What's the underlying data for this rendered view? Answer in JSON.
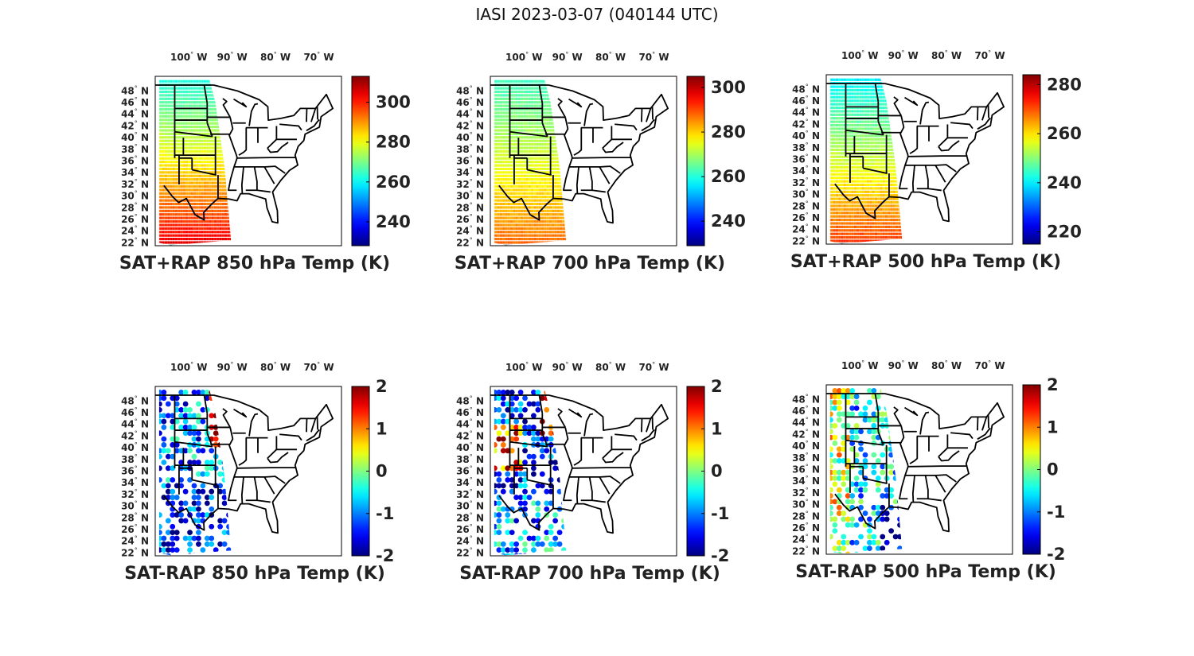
{
  "figure_title": "IASI 2023-03-07 (040144 UTC)",
  "chart_data": [
    {
      "type": "heatmap",
      "title": "SAT+RAP 850 hPa Temp (K)",
      "lon_labels": [
        "100",
        "90",
        "80",
        "70"
      ],
      "lon_suffix": "W",
      "lat_labels": [
        "48",
        "46",
        "44",
        "42",
        "40",
        "38",
        "36",
        "34",
        "32",
        "30",
        "28",
        "26",
        "24",
        "22"
      ],
      "lat_suffix": "N",
      "colorbar": {
        "ticks": [
          "300",
          "280",
          "260",
          "240"
        ],
        "tick_values": [
          300,
          280,
          260,
          240
        ],
        "range": [
          228,
          313
        ]
      },
      "field": "temperature",
      "swath_lon_east": [
        -95,
        -89
      ],
      "colormap": "jet"
    },
    {
      "type": "heatmap",
      "title": "SAT+RAP 700 hPa Temp (K)",
      "lon_labels": [
        "100",
        "90",
        "80",
        "70"
      ],
      "lon_suffix": "W",
      "lat_labels": [
        "48",
        "46",
        "44",
        "42",
        "40",
        "38",
        "36",
        "34",
        "32",
        "30",
        "28",
        "26",
        "24",
        "22"
      ],
      "lat_suffix": "N",
      "colorbar": {
        "ticks": [
          "300",
          "280",
          "260",
          "240"
        ],
        "tick_values": [
          300,
          280,
          260,
          240
        ],
        "range": [
          229,
          305
        ]
      },
      "field": "temperature",
      "swath_lon_east": [
        -95,
        -89
      ],
      "colormap": "jet"
    },
    {
      "type": "heatmap",
      "title": "SAT+RAP 500 hPa Temp (K)",
      "lon_labels": [
        "100",
        "90",
        "80",
        "70"
      ],
      "lon_suffix": "W",
      "lat_labels": [
        "48",
        "46",
        "44",
        "42",
        "40",
        "38",
        "36",
        "34",
        "32",
        "30",
        "28",
        "26",
        "24",
        "22"
      ],
      "lat_suffix": "N",
      "colorbar": {
        "ticks": [
          "280",
          "260",
          "240",
          "220"
        ],
        "tick_values": [
          280,
          260,
          240,
          220
        ],
        "range": [
          215,
          284
        ]
      },
      "field": "temperature",
      "swath_lon_east": [
        -95,
        -89
      ],
      "colormap": "jet"
    },
    {
      "type": "heatmap",
      "title": "SAT-RAP 850 hPa Temp (K)",
      "lon_labels": [
        "100",
        "90",
        "80",
        "70"
      ],
      "lon_suffix": "W",
      "lat_labels": [
        "48",
        "46",
        "44",
        "42",
        "40",
        "38",
        "36",
        "34",
        "32",
        "30",
        "28",
        "26",
        "24",
        "22"
      ],
      "lat_suffix": "N",
      "colorbar": {
        "ticks": [
          "2",
          "1",
          "0",
          "-1",
          "-2"
        ],
        "tick_values": [
          2,
          1,
          0,
          -1,
          -2
        ],
        "range": [
          -2,
          2
        ]
      },
      "field": "difference",
      "swath_lon_east": [
        -95,
        -89
      ],
      "colormap": "jet"
    },
    {
      "type": "heatmap",
      "title": "SAT-RAP 700 hPa Temp (K)",
      "lon_labels": [
        "100",
        "90",
        "80",
        "70"
      ],
      "lon_suffix": "W",
      "lat_labels": [
        "48",
        "46",
        "44",
        "42",
        "40",
        "38",
        "36",
        "34",
        "32",
        "30",
        "28",
        "26",
        "24",
        "22"
      ],
      "lat_suffix": "N",
      "colorbar": {
        "ticks": [
          "2",
          "1",
          "0",
          "-1",
          "-2"
        ],
        "tick_values": [
          2,
          1,
          0,
          -1,
          -2
        ],
        "range": [
          -2,
          2
        ]
      },
      "field": "difference",
      "swath_lon_east": [
        -95,
        -89
      ],
      "colormap": "jet"
    },
    {
      "type": "heatmap",
      "title": "SAT-RAP 500 hPa Temp (K)",
      "lon_labels": [
        "100",
        "90",
        "80",
        "70"
      ],
      "lon_suffix": "W",
      "lat_labels": [
        "48",
        "46",
        "44",
        "42",
        "40",
        "38",
        "36",
        "34",
        "32",
        "30",
        "28",
        "26",
        "24",
        "22"
      ],
      "lat_suffix": "N",
      "colorbar": {
        "ticks": [
          "2",
          "1",
          "0",
          "-1",
          "-2"
        ],
        "tick_values": [
          2,
          1,
          0,
          -1,
          -2
        ],
        "range": [
          -2,
          2
        ]
      },
      "field": "difference",
      "swath_lon_east": [
        -95,
        -89
      ],
      "colormap": "jet"
    }
  ]
}
